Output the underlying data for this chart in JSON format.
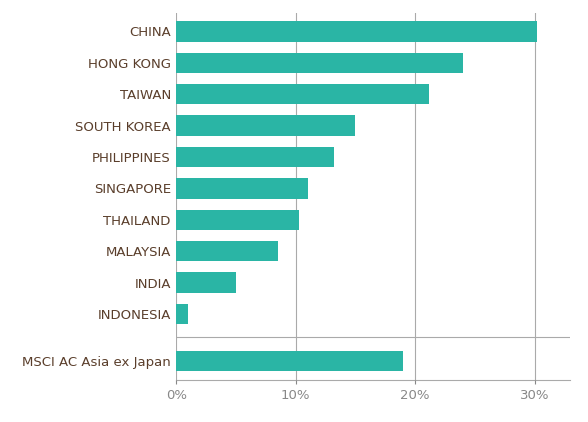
{
  "categories": [
    "CHINA",
    "HONG KONG",
    "TAIWAN",
    "SOUTH KOREA",
    "PHILIPPINES",
    "SINGAPORE",
    "THAILAND",
    "MALAYSIA",
    "INDIA",
    "INDONESIA",
    "MSCI AC Asia ex Japan"
  ],
  "values": [
    30.2,
    24.0,
    21.2,
    15.0,
    13.2,
    11.0,
    10.3,
    8.5,
    5.0,
    1.0,
    19.0
  ],
  "bar_color": "#2ab5a5",
  "label_color": "#5a3e2b",
  "tick_label_color": "#888888",
  "background_color": "#ffffff",
  "xlim": [
    0,
    33
  ],
  "xticks": [
    0,
    10,
    20,
    30
  ],
  "xticklabels": [
    "0%",
    "10%",
    "20%",
    "30%"
  ],
  "bar_height": 0.65,
  "grid_color": "#aaaaaa",
  "label_fontsize": 9.5,
  "tick_fontsize": 9.5,
  "figsize": [
    5.88,
    4.22
  ],
  "dpi": 100
}
